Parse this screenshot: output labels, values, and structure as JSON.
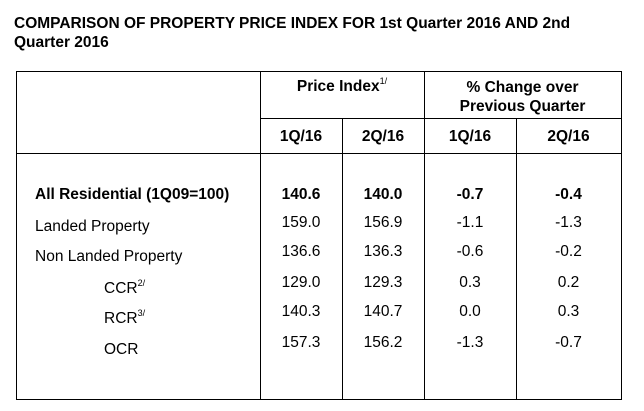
{
  "title": "COMPARISON OF PROPERTY PRICE INDEX FOR 1st Quarter 2016 AND 2nd Quarter 2016",
  "header": {
    "price_index": "Price Index",
    "price_index_note": "1/",
    "pct_change_line1": "% Change over",
    "pct_change_line2": "Previous Quarter",
    "cols": [
      "1Q/16",
      "2Q/16",
      "1Q/16",
      "2Q/16"
    ]
  },
  "rows": [
    {
      "label": "All Residential (1Q09=100)",
      "sup": "",
      "values": [
        "140.6",
        "140.0",
        "-0.7",
        "-0.4"
      ]
    },
    {
      "label": "Landed Property",
      "sup": "",
      "values": [
        "159.0",
        "156.9",
        "-1.1",
        "-1.3"
      ]
    },
    {
      "label": "Non Landed Property",
      "sup": "",
      "values": [
        "136.6",
        "136.3",
        "-0.6",
        "-0.2"
      ]
    },
    {
      "label": "CCR",
      "sup": "2/",
      "values": [
        "129.0",
        "129.3",
        "0.3",
        "0.2"
      ]
    },
    {
      "label": "RCR",
      "sup": "3/",
      "values": [
        "140.3",
        "140.7",
        "0.0",
        "0.3"
      ]
    },
    {
      "label": "OCR",
      "sup": "",
      "values": [
        "157.3",
        "156.2",
        "-1.3",
        "-0.7"
      ]
    }
  ]
}
